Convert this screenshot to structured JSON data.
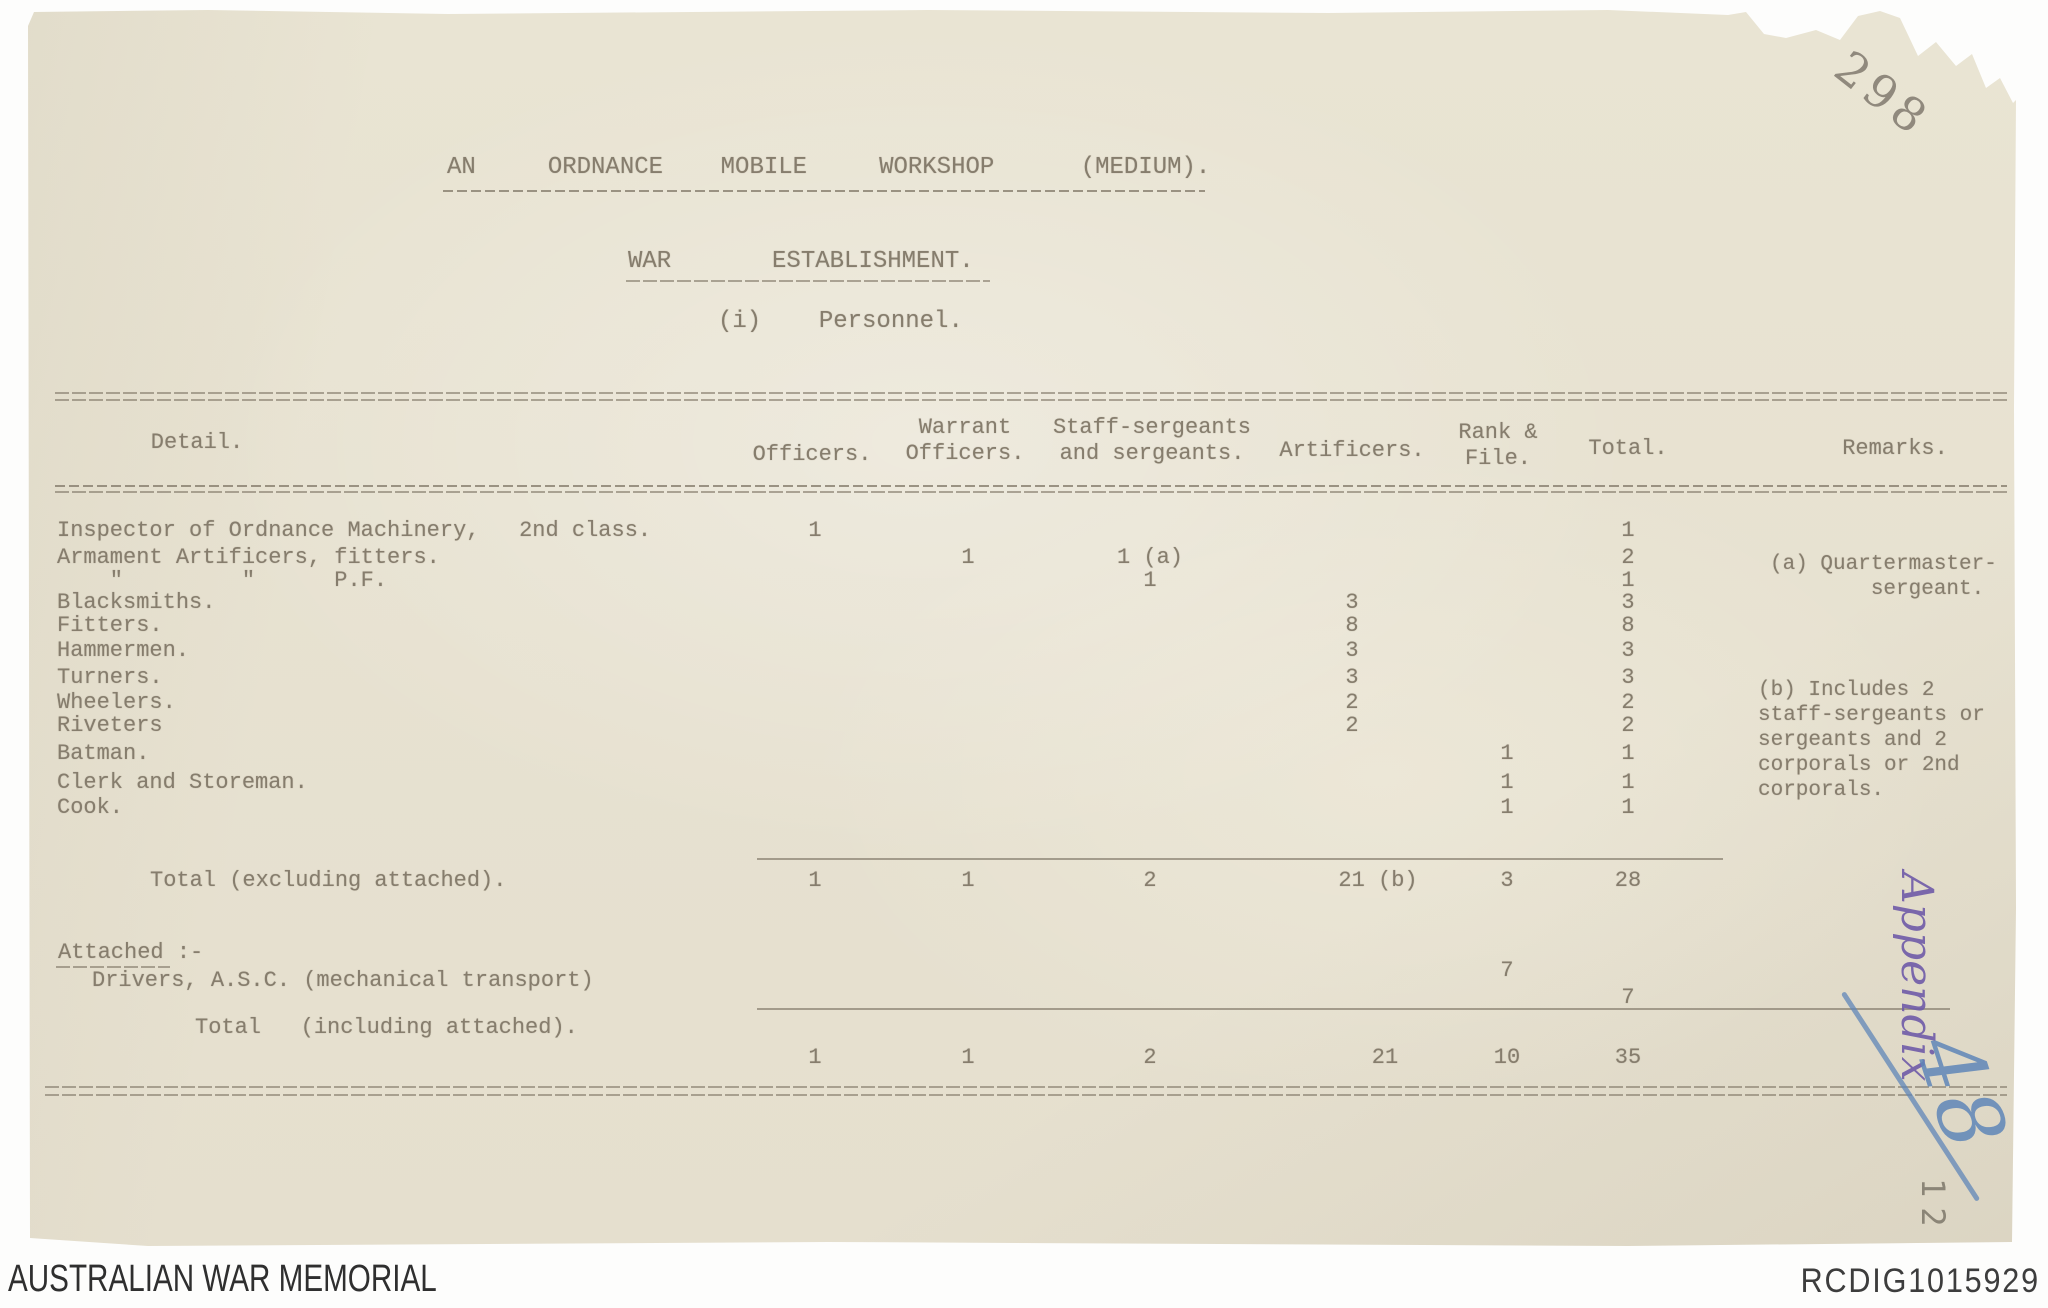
{
  "page": {
    "handwritten_number": "298",
    "appendix_label": "Appendix",
    "appendix_number": "48",
    "side_page_number": "12"
  },
  "document": {
    "title": "AN     ORDNANCE    MOBILE     WORKSHOP      (MEDIUM).",
    "subtitle": "WAR       ESTABLISHMENT.",
    "section_heading": "(i)    Personnel."
  },
  "table": {
    "headers": {
      "detail": "Detail.",
      "officers": "Officers.",
      "warrant": "Warrant\nOfficers.",
      "staff": "Staff-sergeants\nand sergeants.",
      "artificers": "Artificers.",
      "rank_file": "Rank &\nFile.",
      "total": "Total.",
      "remarks": "Remarks."
    },
    "rows": [
      {
        "label": "Inspector of Ordnance Machinery,   2nd class.",
        "officers": "1",
        "total": "1"
      },
      {
        "label": "Armament Artificers, fitters.",
        "warrant": "1",
        "staff": "1 (a)",
        "total": "2"
      },
      {
        "label": "    \"         \"      P.F.",
        "staff": "1",
        "total": "1"
      },
      {
        "label": "Blacksmiths.",
        "artificers": "3",
        "total": "3"
      },
      {
        "label": "Fitters.",
        "artificers": "8",
        "total": "8"
      },
      {
        "label": "Hammermen.",
        "artificers": "3",
        "total": "3"
      },
      {
        "label": "Turners.",
        "artificers": "3",
        "total": "3"
      },
      {
        "label": "Wheelers.",
        "artificers": "2",
        "total": "2"
      },
      {
        "label": "Riveters",
        "artificers": "2",
        "total": "2"
      },
      {
        "label": "Batman.",
        "rank_file": "1",
        "total": "1"
      },
      {
        "label": "Clerk and Storeman.",
        "rank_file": "1",
        "total": "1"
      },
      {
        "label": "Cook.",
        "rank_file": "1",
        "total": "1"
      }
    ],
    "totals_excluding": {
      "label": "Total (excluding attached).",
      "officers": "1",
      "warrant": "1",
      "staff": "2",
      "artificers": "21 (b)",
      "rank_file": "3",
      "total": "28"
    },
    "attached_heading": "Attached :-",
    "attached_row": {
      "label": "Drivers, A.S.C. (mechanical transport)",
      "rank_file": "7",
      "total": "7"
    },
    "totals_including": {
      "label": "Total   (including attached).",
      "officers": "1",
      "warrant": "1",
      "staff": "2",
      "artificers": "21",
      "rank_file": "10",
      "total": "35"
    },
    "remark_a": "(a) Quartermaster-\n        sergeant.",
    "remark_b": "(b) Includes 2\nstaff-sergeants or\nsergeants and 2\ncorporals or 2nd\ncorporals."
  },
  "footer": {
    "left": "AUSTRALIAN WAR MEMORIAL",
    "right": "RCDIG1015929"
  }
}
